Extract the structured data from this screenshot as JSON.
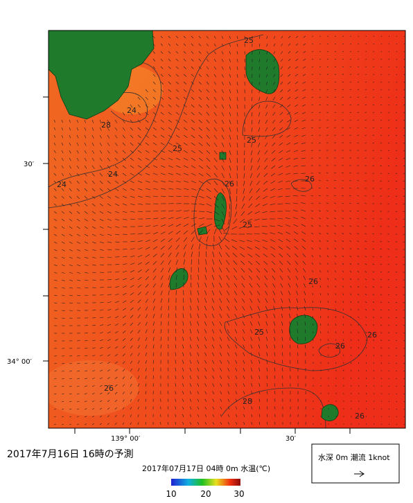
{
  "header": {
    "title": "2017年7月16日 16時の予測",
    "subtitle": "2017年07月17日 04時 0m 水温(℃)"
  },
  "axes": {
    "lat_labels": [
      "30′",
      "34° 00′"
    ],
    "lon_labels": [
      "139° 00′",
      "30′"
    ]
  },
  "map": {
    "contour_labels": [
      "25",
      "24",
      "28",
      "25",
      "25",
      "24",
      "24",
      "26",
      "26",
      "25",
      "26",
      "25",
      "26",
      "26",
      "28",
      "26",
      "26"
    ]
  },
  "colorbar": {
    "ticks": [
      "10",
      "20",
      "30"
    ]
  },
  "legend": {
    "text": "水深 0m 潮流 1knot"
  }
}
